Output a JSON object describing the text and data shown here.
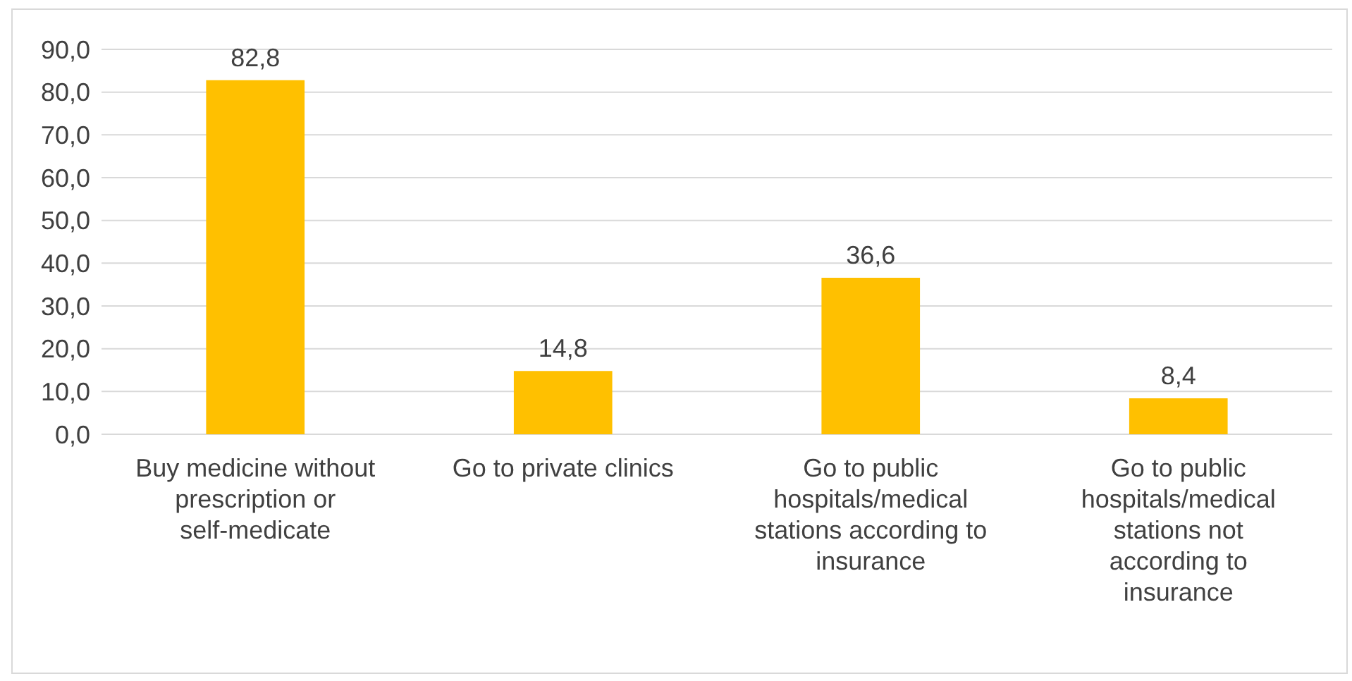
{
  "chart_data": {
    "type": "bar",
    "categories": [
      "Buy medicine without prescription or self-medicate",
      "Go to private clinics",
      "Go to public hospitals/medical stations according to insurance",
      "Go to public hospitals/medical stations not according to insurance"
    ],
    "values": [
      82.8,
      14.8,
      36.6,
      8.4
    ],
    "color": "#ffc000",
    "value_labels": [
      "82,8",
      "14,8",
      "36,6",
      "8,4"
    ],
    "ylim": [
      0,
      90
    ],
    "yticks": [
      {
        "value": 0,
        "label": "0,0"
      },
      {
        "value": 10,
        "label": "10,0"
      },
      {
        "value": 20,
        "label": "20,0"
      },
      {
        "value": 30,
        "label": "30,0"
      },
      {
        "value": 40,
        "label": "40,0"
      },
      {
        "value": 50,
        "label": "50,0"
      },
      {
        "value": 60,
        "label": "60,0"
      },
      {
        "value": 70,
        "label": "70,0"
      },
      {
        "value": 80,
        "label": "80,0"
      },
      {
        "value": 90,
        "label": "90,0"
      }
    ],
    "grid": "y"
  }
}
